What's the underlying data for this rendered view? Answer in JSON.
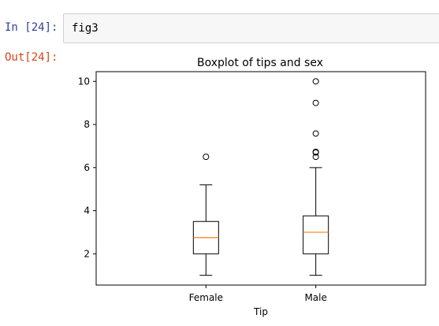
{
  "cell": {
    "in_prompt": "In [24]:",
    "code": "fig3",
    "out_prompt": "Out[24]:"
  },
  "chart_data": {
    "type": "boxplot",
    "title": "Boxplot of tips and sex",
    "xlabel": "Tip",
    "ylabel": "",
    "ylim": [
      0.55,
      10.45
    ],
    "yticks": [
      2,
      4,
      6,
      8,
      10
    ],
    "categories": [
      "Female",
      "Male"
    ],
    "boxes": [
      {
        "category": "Female",
        "min": 1.0,
        "q1": 2.0,
        "median": 2.75,
        "q3": 3.5,
        "max": 5.2,
        "outliers": [
          6.5
        ]
      },
      {
        "category": "Male",
        "min": 1.0,
        "q1": 2.0,
        "median": 3.0,
        "q3": 3.76,
        "max": 6.0,
        "outliers": [
          6.5,
          6.7,
          6.73,
          7.58,
          9.0,
          10.0
        ]
      }
    ],
    "colors": {
      "box": "#000000",
      "median": "#ff7f0e"
    },
    "grid": false
  }
}
